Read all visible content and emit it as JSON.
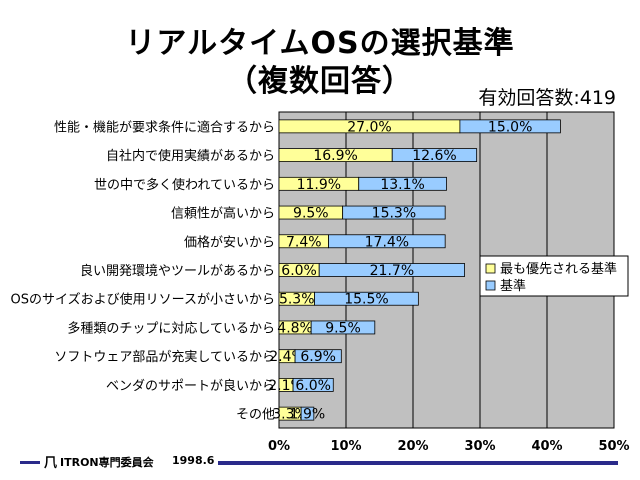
{
  "title_line1": "リアルタイムOSの選択基準",
  "title_line2": "（複数回答）",
  "respondents": "有効回答数:419",
  "footer": {
    "logo": "⺇",
    "org": "ITRON専門委員会",
    "date": "1998.6"
  },
  "chart_data": {
    "type": "bar",
    "orientation": "horizontal",
    "stacked": true,
    "categories": [
      "性能・機能が要求条件に適合するから",
      "自社内で使用実績があるから",
      "世の中で多く使われているから",
      "信頼性が高いから",
      "価格が安いから",
      "良い開発環境やツールがあるから",
      "OSのサイズおよび使用リソースが小さいから",
      "多種類のチップに対応しているから",
      "ソフトウェア部品が充実しているから",
      "ベンダのサポートが良いから",
      "その他"
    ],
    "series": [
      {
        "name": "最も優先される基準",
        "color": "#ffff99",
        "values": [
          27.0,
          16.9,
          11.9,
          9.5,
          7.4,
          6.0,
          5.3,
          4.8,
          2.4,
          2.1,
          3.3
        ],
        "labels": [
          "27.0%",
          "16.9%",
          "11.9%",
          "9.5%",
          "7.4%",
          "6.0%",
          "5.3%",
          "4.8%",
          "2.4%",
          "2.1%",
          "3.3%"
        ]
      },
      {
        "name": "基準",
        "color": "#99ccff",
        "values": [
          15.0,
          12.6,
          13.1,
          15.3,
          17.4,
          21.7,
          15.5,
          9.5,
          6.9,
          6.0,
          1.9
        ],
        "labels": [
          "15.0%",
          "12.6%",
          "13.1%",
          "15.3%",
          "17.4%",
          "21.7%",
          "15.5%",
          "9.5%",
          "6.9%",
          "6.0%",
          "1.9%"
        ]
      }
    ],
    "xlim": [
      0,
      50
    ],
    "xticks": [
      "0%",
      "10%",
      "20%",
      "30%",
      "40%",
      "50%"
    ],
    "plot_background": "#c0c0c0",
    "grid": true,
    "legend_position": "right"
  }
}
